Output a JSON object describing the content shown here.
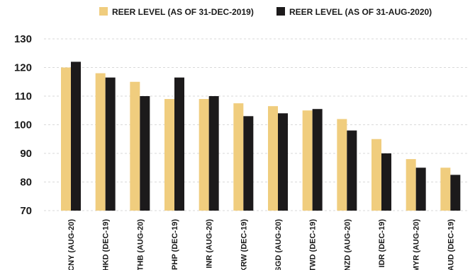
{
  "chart_data": {
    "type": "bar",
    "categories": [
      "CNY (AUG-20)",
      "HKD (DEC-19)",
      "THB (AUG-20)",
      "PHP (DEC-19)",
      "INR (AUG-20)",
      "KRW (DEC-19)",
      "SGD (AUG-20)",
      "TWD (DEC-19)",
      "NZD (AUG-20)",
      "IDR (DEC-19)",
      "MYR (AUG-20)",
      "AUD (DEC-19)"
    ],
    "series": [
      {
        "name": "REER LEVEL (AS OF 31-DEC-2019)",
        "color": "#f0cd7e",
        "values": [
          120,
          118,
          115,
          109,
          109,
          107.5,
          106.5,
          105,
          102,
          95,
          88,
          85
        ]
      },
      {
        "name": "REER LEVEL (AS OF 31-AUG-2020)",
        "color": "#1c1a1b",
        "values": [
          122,
          116.5,
          110,
          116.5,
          110,
          103,
          104,
          105.5,
          98,
          90,
          85,
          82.5
        ]
      }
    ],
    "yticks": [
      70,
      80,
      90,
      100,
      110,
      120,
      130
    ],
    "ylim": [
      70,
      130
    ],
    "grid": "horizontal-dashed",
    "legend_position": "top"
  }
}
